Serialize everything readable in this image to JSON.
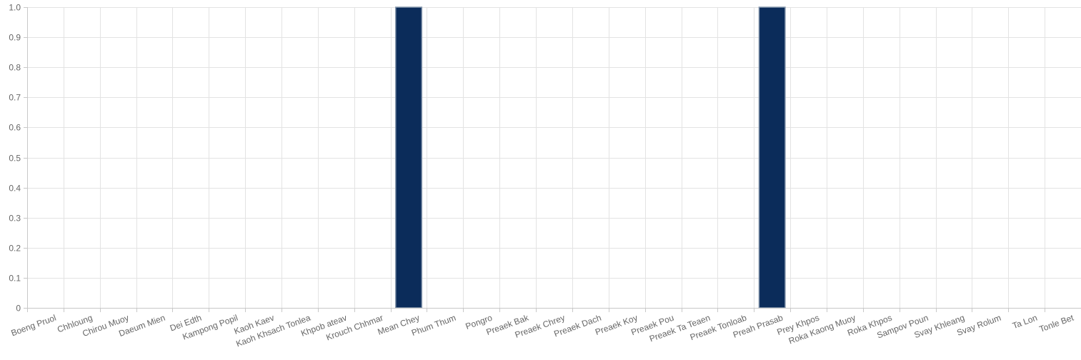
{
  "chart_data": {
    "type": "bar",
    "title": "",
    "xlabel": "",
    "ylabel": "",
    "ylim": [
      0,
      1
    ],
    "yticks": [
      "0",
      "0.1",
      "0.2",
      "0.3",
      "0.4",
      "0.5",
      "0.6",
      "0.7",
      "0.8",
      "0.9",
      "1.0"
    ],
    "grid": true,
    "legend": "none",
    "categories": [
      "Boeng Pruol",
      "Chhloung",
      "Chirou Muoy",
      "Daeum Mien",
      "Dei Edth",
      "Kampong Popil",
      "Kaoh Kaev",
      "Kaoh Khsach Tonlea",
      "Khpob ateav",
      "Krouch Chhmar",
      "Mean Chey",
      "Phum Thum",
      "Pongro",
      "Preaek Bak",
      "Preaek Chrey",
      "Preaek Dach",
      "Preaek Koy",
      "Preaek Pou",
      "Preaek Ta Teaen",
      "Preaek Tonloab",
      "Preah Prasab",
      "Prey Khpos",
      "Roka Kaong Muoy",
      "Roka Khpos",
      "Sampov Poun",
      "Svay Khleang",
      "Svay Rolum",
      "Ta Lon",
      "Tonle Bet"
    ],
    "series": [
      {
        "values": [
          0,
          0,
          0,
          0,
          0,
          0,
          0,
          0,
          0,
          0,
          1,
          0,
          0,
          0,
          0,
          0,
          0,
          0,
          0,
          0,
          1,
          0,
          0,
          0,
          0,
          0,
          0,
          0,
          0
        ],
        "color": "#0b2c5a",
        "border_color": "#8a9bb0"
      }
    ]
  }
}
